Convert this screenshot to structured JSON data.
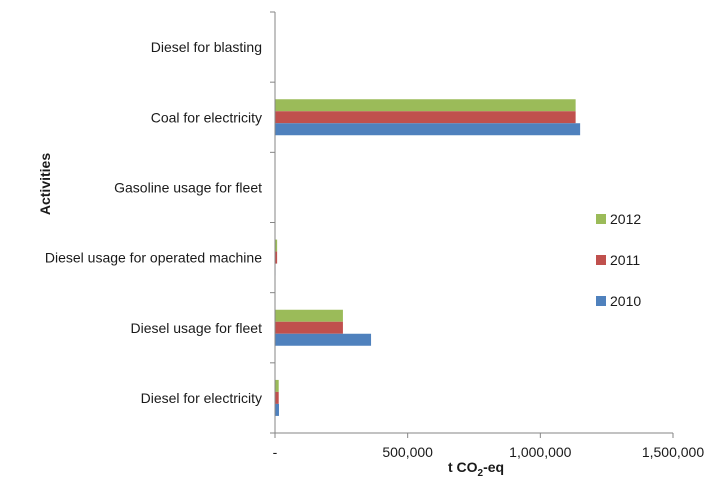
{
  "chart_data": {
    "type": "bar",
    "orientation": "horizontal",
    "categories": [
      "Diesel for electricity",
      "Diesel usage for fleet",
      "Diesel usage for operated machine",
      "Gasoline usage for fleet",
      "Coal for electricity",
      "Diesel for blasting"
    ],
    "series": [
      {
        "name": "2010",
        "color": "#4F81BD",
        "values": [
          15000,
          362000,
          2000,
          500,
          1150000,
          300
        ]
      },
      {
        "name": "2011",
        "color": "#C0504D",
        "values": [
          14000,
          256000,
          8000,
          500,
          1133000,
          300
        ]
      },
      {
        "name": "2012",
        "color": "#9BBB59",
        "values": [
          14000,
          256000,
          8000,
          500,
          1133000,
          300
        ]
      }
    ],
    "xlabel_main": "t CO",
    "xlabel_sub": "2",
    "xlabel_tail": "-eq",
    "ylabel": "Activities",
    "xlim": [
      0,
      1500000
    ],
    "xticks": [
      0,
      500000,
      1000000,
      1500000
    ],
    "xtick_labels": [
      "-",
      "500,000",
      "1,000,000",
      "1,500,000"
    ],
    "legend_position": "right",
    "legend_order": [
      "2012",
      "2011",
      "2010"
    ],
    "grid": false
  }
}
